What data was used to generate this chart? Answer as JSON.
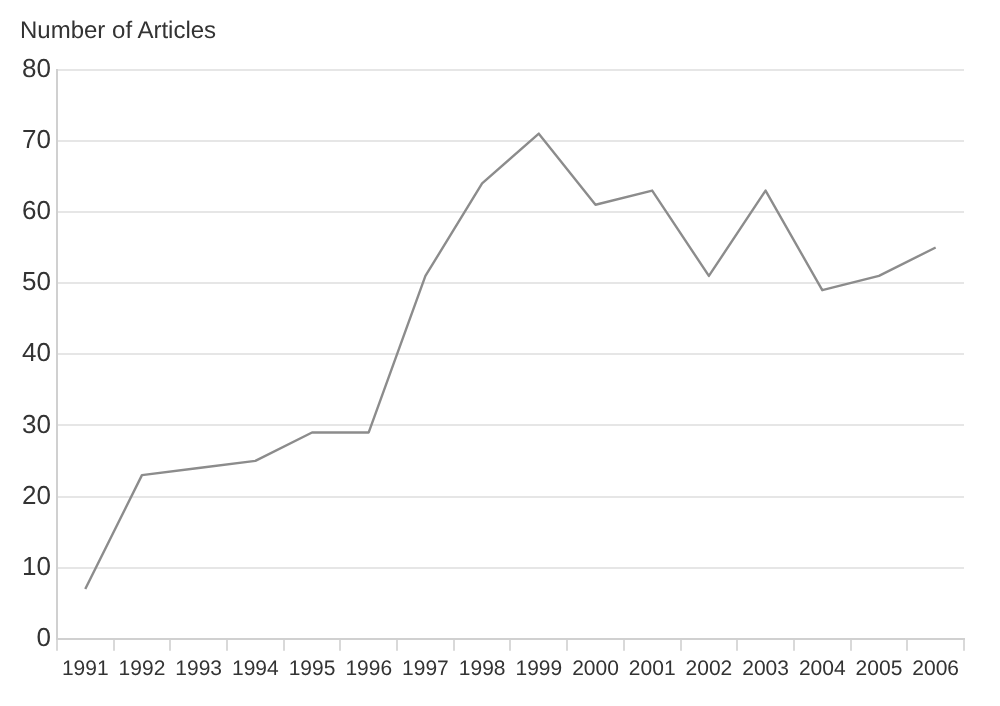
{
  "chart_data": {
    "type": "line",
    "ylabel": "Number of Articles",
    "categories": [
      "1991",
      "1992",
      "1993",
      "1994",
      "1995",
      "1996",
      "1997",
      "1998",
      "1999",
      "2000",
      "2001",
      "2002",
      "2003",
      "2004",
      "2005",
      "2006"
    ],
    "series": [
      {
        "color": "#8c8c8c",
        "values": [
          7,
          23,
          24,
          25,
          29,
          29,
          51,
          64,
          71,
          61,
          63,
          51,
          63,
          49,
          51,
          55
        ]
      }
    ],
    "ylim": [
      0,
      80
    ],
    "yticks": [
      0,
      10,
      20,
      30,
      40,
      50,
      60,
      70,
      80
    ],
    "grid": "y",
    "legend": false,
    "marker": "none",
    "line_style": "solid"
  }
}
